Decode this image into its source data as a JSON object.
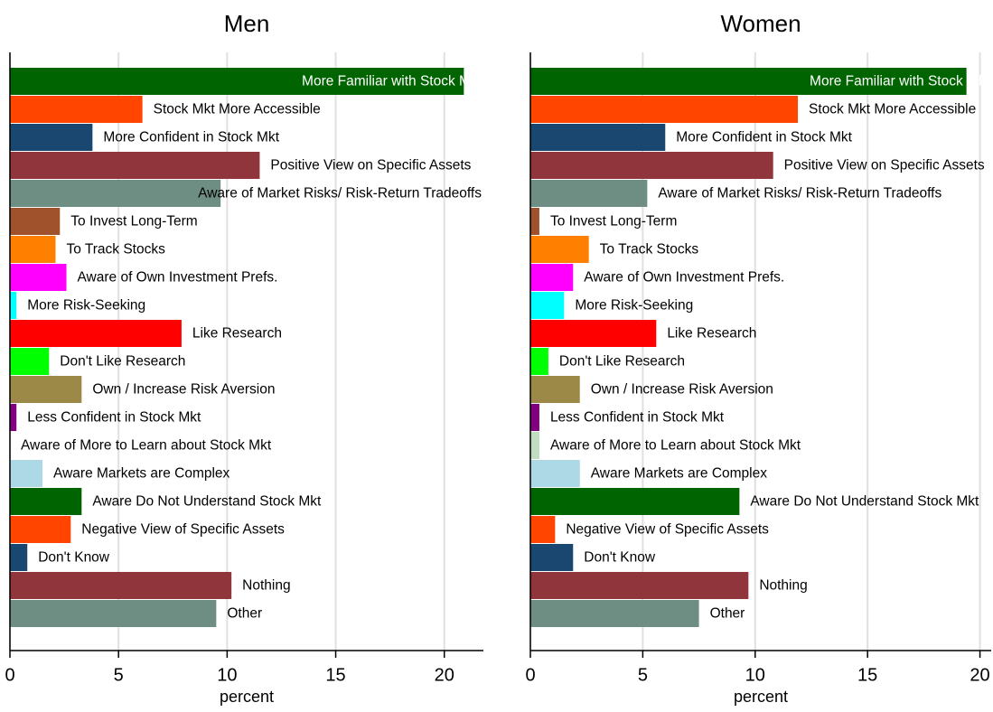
{
  "chart_data": [
    {
      "type": "bar",
      "orientation": "horizontal",
      "title": "Men",
      "xlabel": "percent",
      "categories": [
        "More Familiar with Stock Mkt",
        "Stock Mkt More Accessible",
        "More Confident in Stock Mkt",
        "Positive View on Specific Assets",
        "Aware of Market Risks/ Risk-Return Tradeoffs",
        "To Invest Long-Term",
        "To Track Stocks",
        "Aware of Own Investment Prefs.",
        "More Risk-Seeking",
        "Like Research",
        "Don't Like Research",
        "Own / Increase Risk Aversion",
        "Less Confident in Stock Mkt",
        "Aware of More to Learn about Stock Mkt",
        "Aware Markets are Complex",
        "Aware Do Not Understand Stock Mkt",
        "Negative View of Specific Assets",
        "Don't Know",
        "Nothing",
        "Other"
      ],
      "values": [
        20.9,
        6.1,
        3.8,
        11.5,
        9.7,
        2.3,
        2.1,
        2.6,
        0.3,
        7.9,
        1.8,
        3.3,
        0.3,
        0,
        1.5,
        3.3,
        2.8,
        0.8,
        10.2,
        9.5
      ],
      "colors": [
        "#006400",
        "#ff4500",
        "#1a476f",
        "#90353b",
        "#6e8e84",
        "#a0522d",
        "#ff7f00",
        "#ff00ff",
        "#00ffff",
        "#ff0000",
        "#00ff00",
        "#9c8847",
        "#800080",
        "#c1dcc1",
        "#add8e6",
        "#006400",
        "#ff4500",
        "#1a476f",
        "#90353b",
        "#6e8e84"
      ],
      "xlim": [
        0,
        21.8
      ],
      "xticks": [
        0,
        5,
        10,
        15,
        20
      ],
      "grid": true
    },
    {
      "type": "bar",
      "orientation": "horizontal",
      "title": "Women",
      "xlabel": "percent",
      "categories": [
        "More Familiar with Stock Mkt",
        "Stock Mkt More Accessible",
        "More Confident in Stock Mkt",
        "Positive View on Specific Assets",
        "Aware of Market Risks/ Risk-Return Tradeoffs",
        "To Invest Long-Term",
        "To Track Stocks",
        "Aware of Own Investment Prefs.",
        "More Risk-Seeking",
        "Like Research",
        "Don't Like Research",
        "Own / Increase Risk Aversion",
        "Less Confident in Stock Mkt",
        "Aware of More to Learn about Stock Mkt",
        "Aware Markets are Complex",
        "Aware Do Not Understand Stock Mkt",
        "Negative View of Specific Assets",
        "Don't Know",
        "Nothing",
        "Other"
      ],
      "values": [
        19.4,
        11.9,
        6.0,
        10.8,
        5.2,
        0.4,
        2.6,
        1.9,
        1.5,
        5.6,
        0.8,
        2.2,
        0.4,
        0.4,
        2.2,
        9.3,
        1.1,
        1.9,
        9.7,
        7.5
      ],
      "colors": [
        "#006400",
        "#ff4500",
        "#1a476f",
        "#90353b",
        "#6e8e84",
        "#a0522d",
        "#ff7f00",
        "#ff00ff",
        "#00ffff",
        "#ff0000",
        "#00ff00",
        "#9c8847",
        "#800080",
        "#c1dcc1",
        "#add8e6",
        "#006400",
        "#ff4500",
        "#1a476f",
        "#90353b",
        "#6e8e84"
      ],
      "xlim": [
        0,
        20.5
      ],
      "xticks": [
        0,
        5,
        10,
        15,
        20
      ],
      "grid": true
    }
  ]
}
